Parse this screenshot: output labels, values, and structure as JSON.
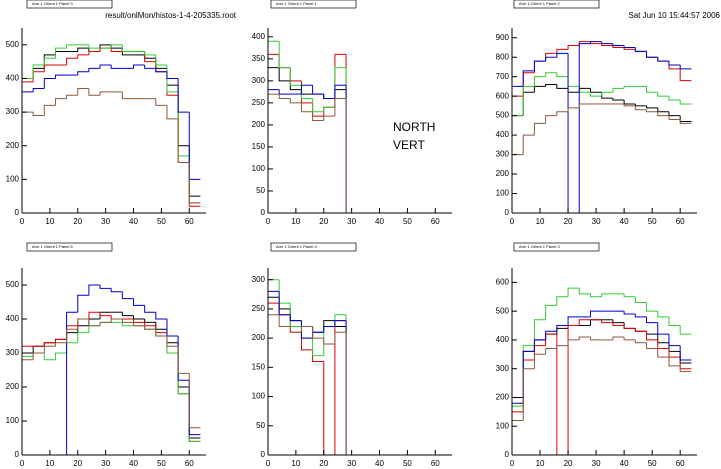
{
  "chart_data": [
    {
      "type": "histogram",
      "title": "Arm 1 Orient 1 Panel 0",
      "subtitle": "result/onlMon/histos-1-4-205335.root",
      "bins": [
        0,
        4,
        8,
        12,
        16,
        20,
        24,
        28,
        32,
        36,
        40,
        44,
        48,
        52,
        56,
        60,
        64
      ],
      "xlim": [
        0,
        66
      ],
      "xticks": [
        0,
        10,
        20,
        30,
        40,
        50,
        60
      ],
      "ylim": [
        0,
        550
      ],
      "yticks": [
        0,
        100,
        200,
        300,
        400,
        500
      ],
      "series": [
        {
          "color": "#000000",
          "values": [
            400,
            430,
            470,
            480,
            480,
            490,
            480,
            500,
            490,
            470,
            470,
            460,
            430,
            380,
            200,
            50
          ]
        },
        {
          "color": "#dd0000",
          "values": [
            390,
            420,
            440,
            440,
            460,
            470,
            480,
            490,
            480,
            480,
            480,
            450,
            420,
            350,
            150,
            20
          ]
        },
        {
          "color": "#33cc33",
          "values": [
            400,
            440,
            460,
            490,
            500,
            500,
            490,
            490,
            500,
            480,
            480,
            470,
            440,
            360,
            170,
            30
          ]
        },
        {
          "color": "#0000cc",
          "values": [
            360,
            370,
            400,
            410,
            410,
            420,
            430,
            440,
            430,
            430,
            440,
            430,
            420,
            400,
            300,
            100
          ]
        },
        {
          "color": "#8b5a3c",
          "values": [
            300,
            290,
            320,
            340,
            350,
            370,
            350,
            360,
            360,
            340,
            340,
            340,
            320,
            280,
            150,
            30
          ]
        }
      ]
    },
    {
      "type": "histogram",
      "title": "Arm 1 Orient 1 Panel 1",
      "annotations": [
        "NORTH",
        "VERT"
      ],
      "bins": [
        0,
        4,
        8,
        12,
        16,
        20,
        24,
        28,
        32,
        36,
        40,
        44,
        48,
        52,
        56,
        60,
        64
      ],
      "xlim": [
        0,
        66
      ],
      "xticks": [
        0,
        10,
        20,
        30,
        40,
        50,
        60
      ],
      "ylim": [
        0,
        420
      ],
      "yticks": [
        0,
        50,
        100,
        150,
        200,
        250,
        300,
        350,
        400
      ],
      "series": [
        {
          "color": "#000000",
          "values": [
            330,
            300,
            280,
            270,
            270,
            260,
            280,
            0,
            0,
            0,
            0,
            0,
            0,
            0,
            0,
            0
          ]
        },
        {
          "color": "#dd0000",
          "values": [
            360,
            330,
            300,
            250,
            220,
            240,
            360,
            0,
            0,
            0,
            0,
            0,
            0,
            0,
            0,
            0
          ]
        },
        {
          "color": "#33cc33",
          "values": [
            390,
            330,
            290,
            260,
            230,
            240,
            330,
            0,
            0,
            0,
            0,
            0,
            0,
            0,
            0,
            0
          ]
        },
        {
          "color": "#0000cc",
          "values": [
            280,
            270,
            270,
            290,
            270,
            260,
            290,
            0,
            0,
            0,
            0,
            0,
            0,
            0,
            0,
            0
          ]
        },
        {
          "color": "#8b5a3c",
          "values": [
            270,
            260,
            250,
            230,
            210,
            220,
            260,
            0,
            0,
            0,
            0,
            0,
            0,
            0,
            0,
            0
          ]
        }
      ]
    },
    {
      "type": "histogram",
      "title": "Arm 1 Orient 1 Panel 2",
      "subtitle": "Sat Jun 10 15:44:57 2006",
      "bins": [
        0,
        4,
        8,
        12,
        16,
        20,
        24,
        28,
        32,
        36,
        40,
        44,
        48,
        52,
        56,
        60,
        64
      ],
      "xlim": [
        0,
        66
      ],
      "xticks": [
        0,
        10,
        20,
        30,
        40,
        50,
        60
      ],
      "ylim": [
        0,
        950
      ],
      "yticks": [
        0,
        100,
        200,
        300,
        400,
        500,
        600,
        700,
        800,
        900
      ],
      "series": [
        {
          "color": "#000000",
          "values": [
            500,
            620,
            650,
            660,
            640,
            620,
            640,
            620,
            590,
            580,
            560,
            550,
            540,
            520,
            500,
            470
          ]
        },
        {
          "color": "#dd0000",
          "values": [
            600,
            720,
            780,
            820,
            840,
            860,
            880,
            870,
            860,
            850,
            840,
            830,
            800,
            780,
            740,
            680
          ]
        },
        {
          "color": "#33cc33",
          "values": [
            500,
            650,
            700,
            720,
            700,
            650,
            620,
            600,
            620,
            640,
            650,
            650,
            620,
            600,
            580,
            560
          ]
        },
        {
          "color": "#0000cc",
          "values": [
            650,
            730,
            780,
            800,
            820,
            0,
            870,
            880,
            870,
            860,
            850,
            830,
            800,
            780,
            760,
            740
          ]
        },
        {
          "color": "#8b5a3c",
          "values": [
            300,
            400,
            460,
            500,
            520,
            540,
            560,
            560,
            560,
            560,
            550,
            530,
            520,
            500,
            480,
            460
          ]
        }
      ]
    },
    {
      "type": "histogram",
      "title": "Arm 1 Orient 1 Panel 5",
      "bins": [
        0,
        4,
        8,
        12,
        16,
        20,
        24,
        28,
        32,
        36,
        40,
        44,
        48,
        52,
        56,
        60,
        64
      ],
      "xlim": [
        0,
        66
      ],
      "xticks": [
        0,
        10,
        20,
        30,
        40,
        50,
        60
      ],
      "ylim": [
        0,
        550
      ],
      "yticks": [
        0,
        100,
        200,
        300,
        400,
        500
      ],
      "series": [
        {
          "color": "#000000",
          "values": [
            300,
            320,
            330,
            340,
            360,
            380,
            400,
            420,
            420,
            410,
            400,
            390,
            370,
            330,
            200,
            50
          ]
        },
        {
          "color": "#dd0000",
          "values": [
            320,
            320,
            330,
            340,
            380,
            400,
            420,
            410,
            400,
            400,
            390,
            380,
            360,
            300,
            180,
            40
          ]
        },
        {
          "color": "#33cc33",
          "values": [
            290,
            300,
            280,
            300,
            330,
            360,
            380,
            390,
            390,
            380,
            380,
            370,
            350,
            300,
            180,
            40
          ]
        },
        {
          "color": "#0000cc",
          "values": [
            0,
            0,
            0,
            0,
            420,
            470,
            500,
            490,
            480,
            460,
            440,
            420,
            400,
            350,
            220,
            60
          ]
        },
        {
          "color": "#8b5a3c",
          "values": [
            280,
            300,
            320,
            330,
            370,
            400,
            380,
            390,
            400,
            390,
            380,
            370,
            350,
            320,
            240,
            80
          ]
        }
      ]
    },
    {
      "type": "histogram",
      "title": "Arm 1 Orient 1 Panel 4",
      "bins": [
        0,
        4,
        8,
        12,
        16,
        20,
        24,
        28,
        32,
        36,
        40,
        44,
        48,
        52,
        56,
        60,
        64
      ],
      "xlim": [
        0,
        66
      ],
      "xticks": [
        0,
        10,
        20,
        30,
        40,
        50,
        60
      ],
      "ylim": [
        0,
        320
      ],
      "yticks": [
        0,
        50,
        100,
        150,
        200,
        250,
        300
      ],
      "series": [
        {
          "color": "#000000",
          "values": [
            270,
            250,
            230,
            220,
            210,
            230,
            220,
            0,
            0,
            0,
            0,
            0,
            0,
            0,
            0,
            0
          ]
        },
        {
          "color": "#dd0000",
          "values": [
            260,
            240,
            210,
            180,
            160,
            0,
            230,
            0,
            0,
            0,
            0,
            0,
            0,
            0,
            0,
            0
          ]
        },
        {
          "color": "#33cc33",
          "values": [
            300,
            260,
            220,
            200,
            170,
            220,
            240,
            0,
            0,
            0,
            0,
            0,
            0,
            0,
            0,
            0
          ]
        },
        {
          "color": "#0000cc",
          "values": [
            280,
            240,
            230,
            200,
            210,
            220,
            230,
            0,
            0,
            0,
            0,
            0,
            0,
            0,
            0,
            0
          ]
        },
        {
          "color": "#8b5a3c",
          "values": [
            240,
            220,
            210,
            220,
            200,
            190,
            210,
            0,
            0,
            0,
            0,
            0,
            0,
            0,
            0,
            0
          ]
        }
      ]
    },
    {
      "type": "histogram",
      "title": "Arm 1 Orient 1 Panel 3",
      "bins": [
        0,
        4,
        8,
        12,
        16,
        20,
        24,
        28,
        32,
        36,
        40,
        44,
        48,
        52,
        56,
        60,
        64
      ],
      "xlim": [
        0,
        66
      ],
      "xticks": [
        0,
        10,
        20,
        30,
        40,
        50,
        60
      ],
      "ylim": [
        0,
        650
      ],
      "yticks": [
        0,
        100,
        200,
        300,
        400,
        500,
        600
      ],
      "series": [
        {
          "color": "#000000",
          "values": [
            200,
            360,
            400,
            420,
            440,
            450,
            450,
            470,
            470,
            460,
            440,
            430,
            420,
            390,
            360,
            320
          ]
        },
        {
          "color": "#dd0000",
          "values": [
            150,
            330,
            380,
            420,
            0,
            450,
            470,
            470,
            460,
            450,
            440,
            430,
            400,
            370,
            340,
            300
          ]
        },
        {
          "color": "#33cc33",
          "values": [
            170,
            380,
            470,
            520,
            550,
            580,
            560,
            550,
            560,
            560,
            550,
            530,
            500,
            480,
            450,
            420
          ]
        },
        {
          "color": "#0000cc",
          "values": [
            180,
            360,
            400,
            430,
            450,
            480,
            480,
            500,
            500,
            500,
            490,
            480,
            460,
            420,
            380,
            330
          ]
        },
        {
          "color": "#8b5a3c",
          "values": [
            120,
            300,
            350,
            370,
            380,
            400,
            410,
            400,
            400,
            410,
            400,
            390,
            370,
            340,
            310,
            290
          ]
        }
      ]
    }
  ]
}
